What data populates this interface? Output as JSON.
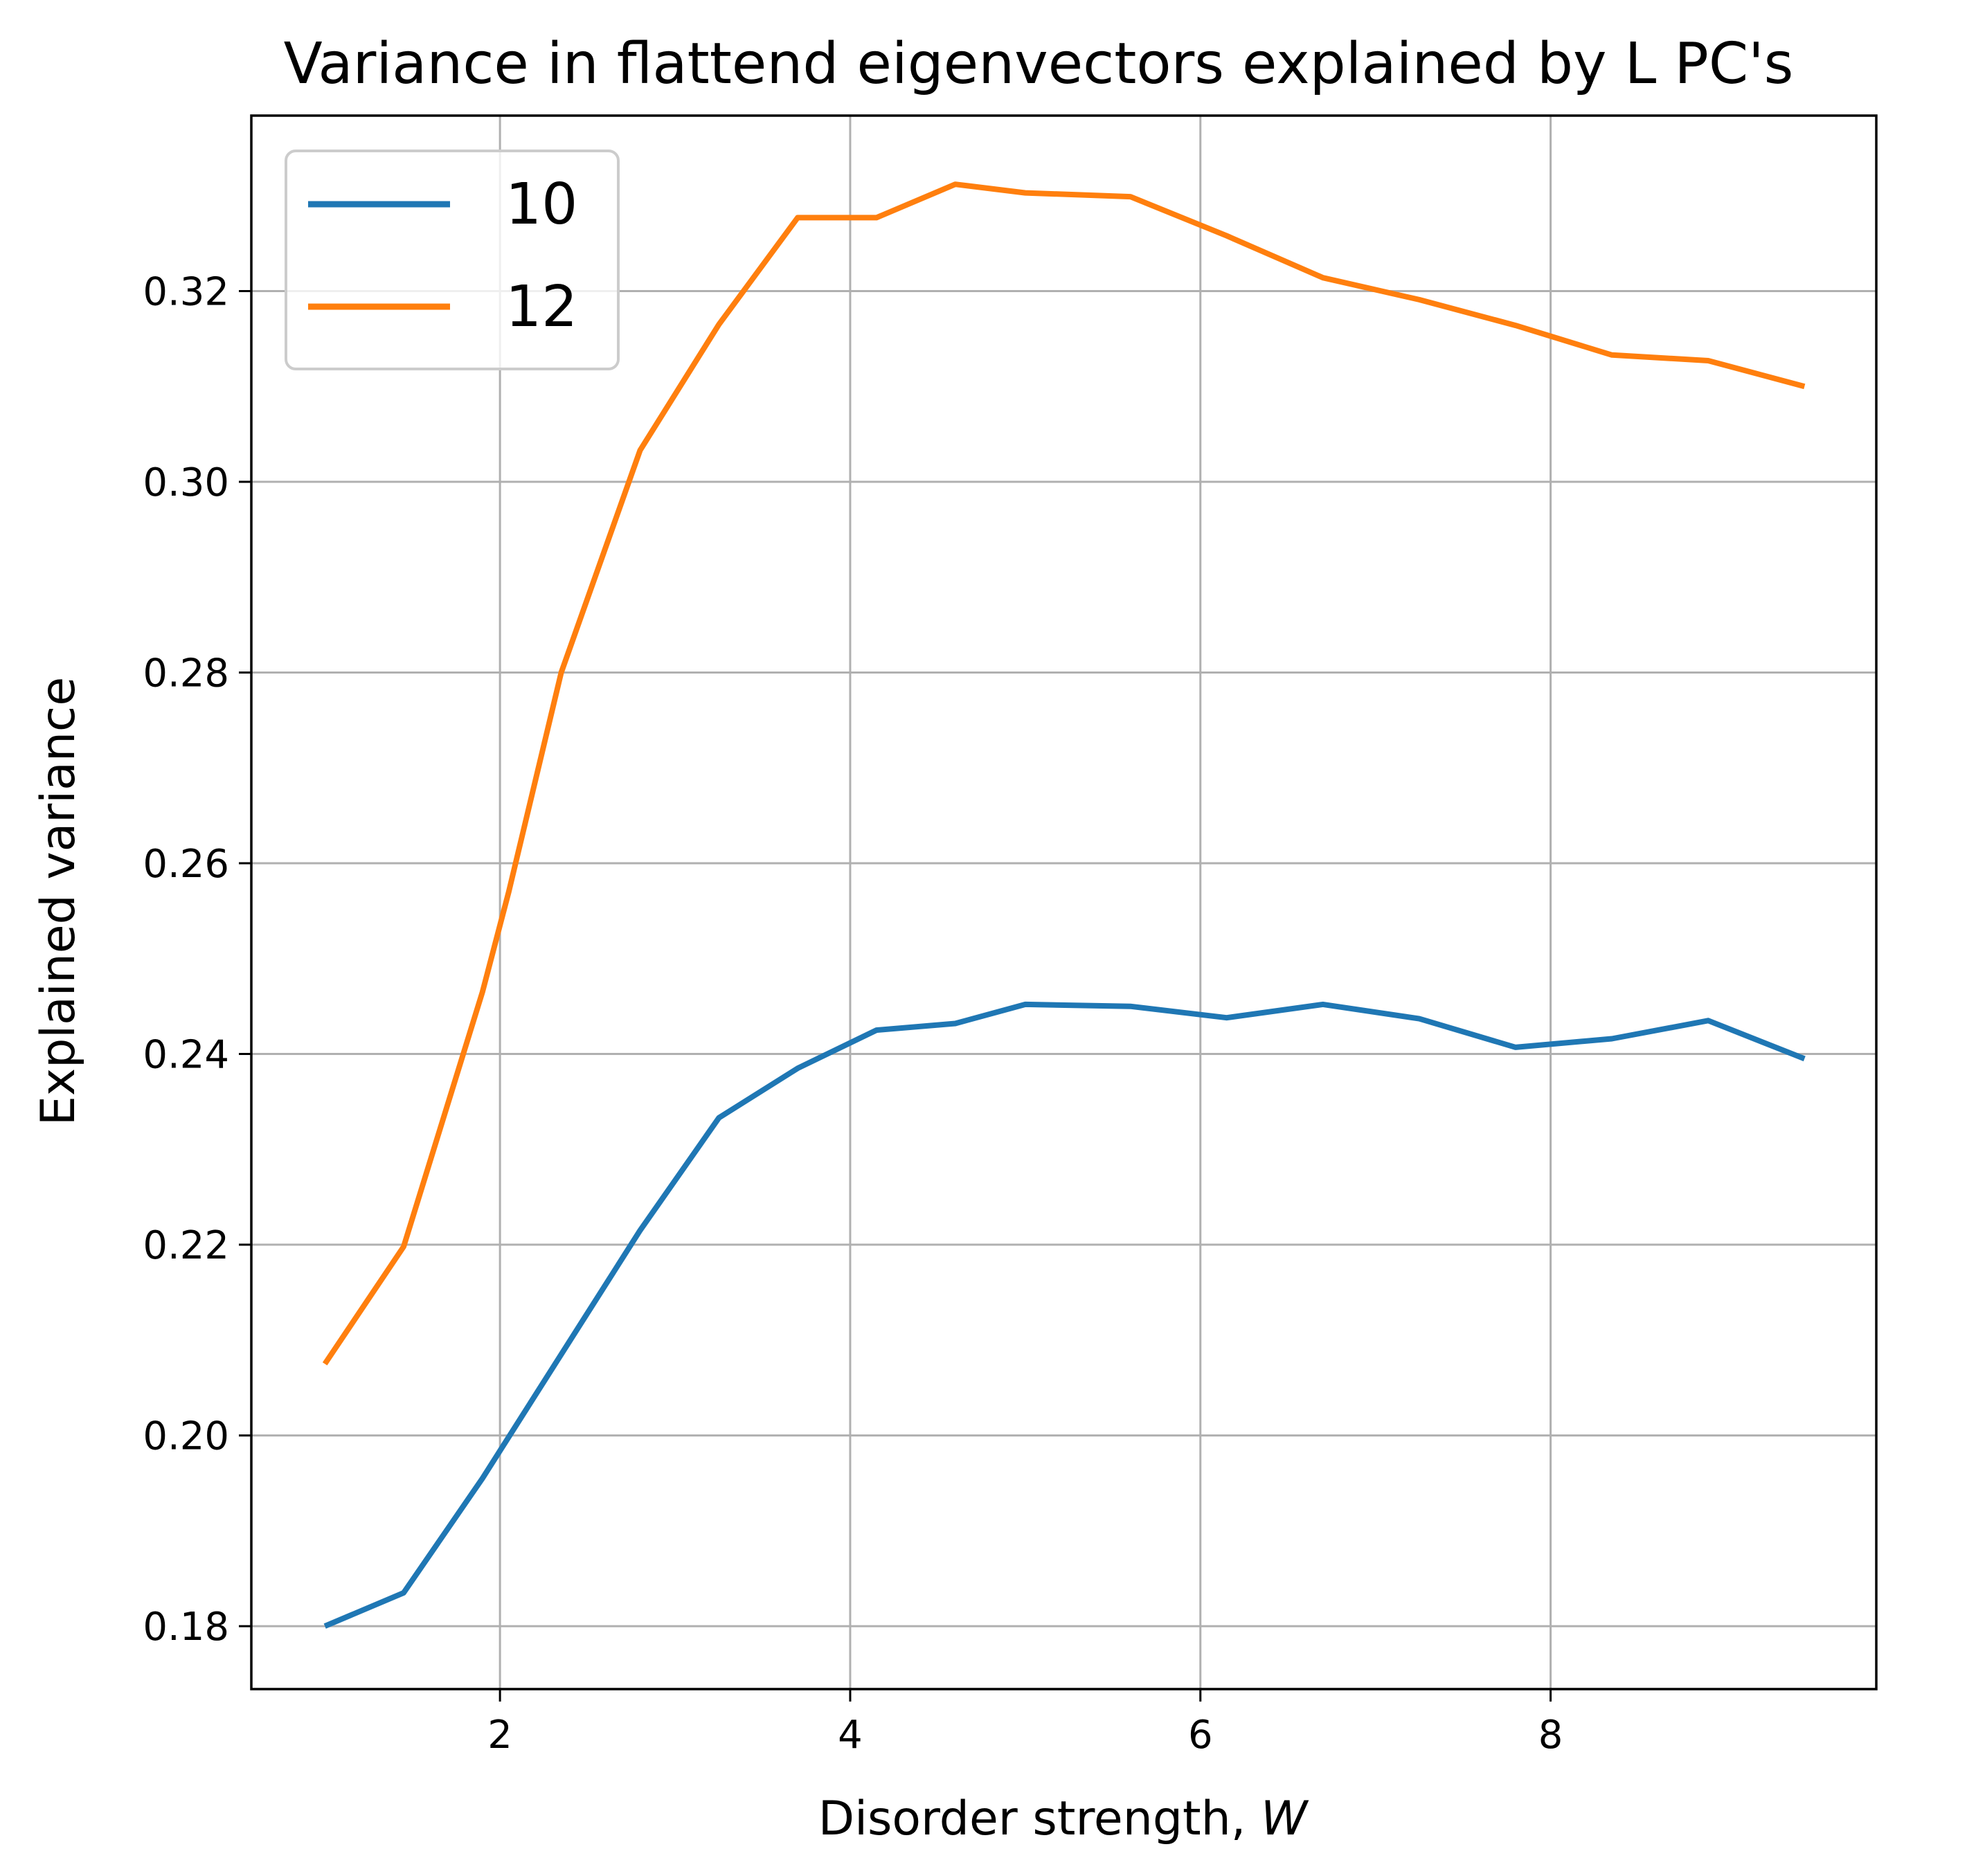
{
  "chart_data": {
    "type": "line",
    "title": "Variance in flattend eigenvectors explained by L PC's",
    "xlabel": "Disorder strength, ",
    "xlabel_var": "W",
    "ylabel": "Explained variance",
    "xlim": [
      0.58,
      9.86
    ],
    "ylim": [
      0.1734,
      0.3384
    ],
    "xticks": [
      2,
      4,
      6,
      8
    ],
    "xtick_labels": [
      "2",
      "4",
      "6",
      "8"
    ],
    "yticks": [
      0.18,
      0.2,
      0.22,
      0.24,
      0.26,
      0.28,
      0.3,
      0.32
    ],
    "ytick_labels": [
      "0.18",
      "0.20",
      "0.22",
      "0.24",
      "0.26",
      "0.28",
      "0.30",
      "0.32"
    ],
    "grid": true,
    "legend": {
      "location": "upper-left",
      "entries": [
        "10",
        "12"
      ]
    },
    "series": [
      {
        "name": "10",
        "color": "#1f77b4",
        "x": [
          1.0,
          1.45,
          1.9,
          2.35,
          2.8,
          3.25,
          3.7,
          4.15,
          4.6,
          5.0,
          5.6,
          6.15,
          6.7,
          7.25,
          7.8,
          8.35,
          8.9,
          9.45
        ],
        "y": [
          0.18,
          0.1835,
          0.1955,
          0.2085,
          0.2215,
          0.2333,
          0.2385,
          0.2425,
          0.2432,
          0.2452,
          0.245,
          0.2438,
          0.2452,
          0.2437,
          0.2407,
          0.2416,
          0.2435,
          0.2395
        ]
      },
      {
        "name": "12",
        "color": "#ff7f0e",
        "x": [
          1.0,
          1.45,
          1.9,
          2.05,
          2.35,
          2.8,
          3.25,
          3.7,
          4.15,
          4.6,
          5.0,
          5.6,
          6.15,
          6.7,
          7.25,
          7.8,
          8.35,
          8.9,
          9.45
        ],
        "y": [
          0.2075,
          0.2198,
          0.2465,
          0.257,
          0.28,
          0.3033,
          0.3165,
          0.3277,
          0.3277,
          0.3312,
          0.3303,
          0.3299,
          0.3258,
          0.3214,
          0.3191,
          0.3164,
          0.3133,
          0.3127,
          0.31
        ]
      }
    ]
  }
}
